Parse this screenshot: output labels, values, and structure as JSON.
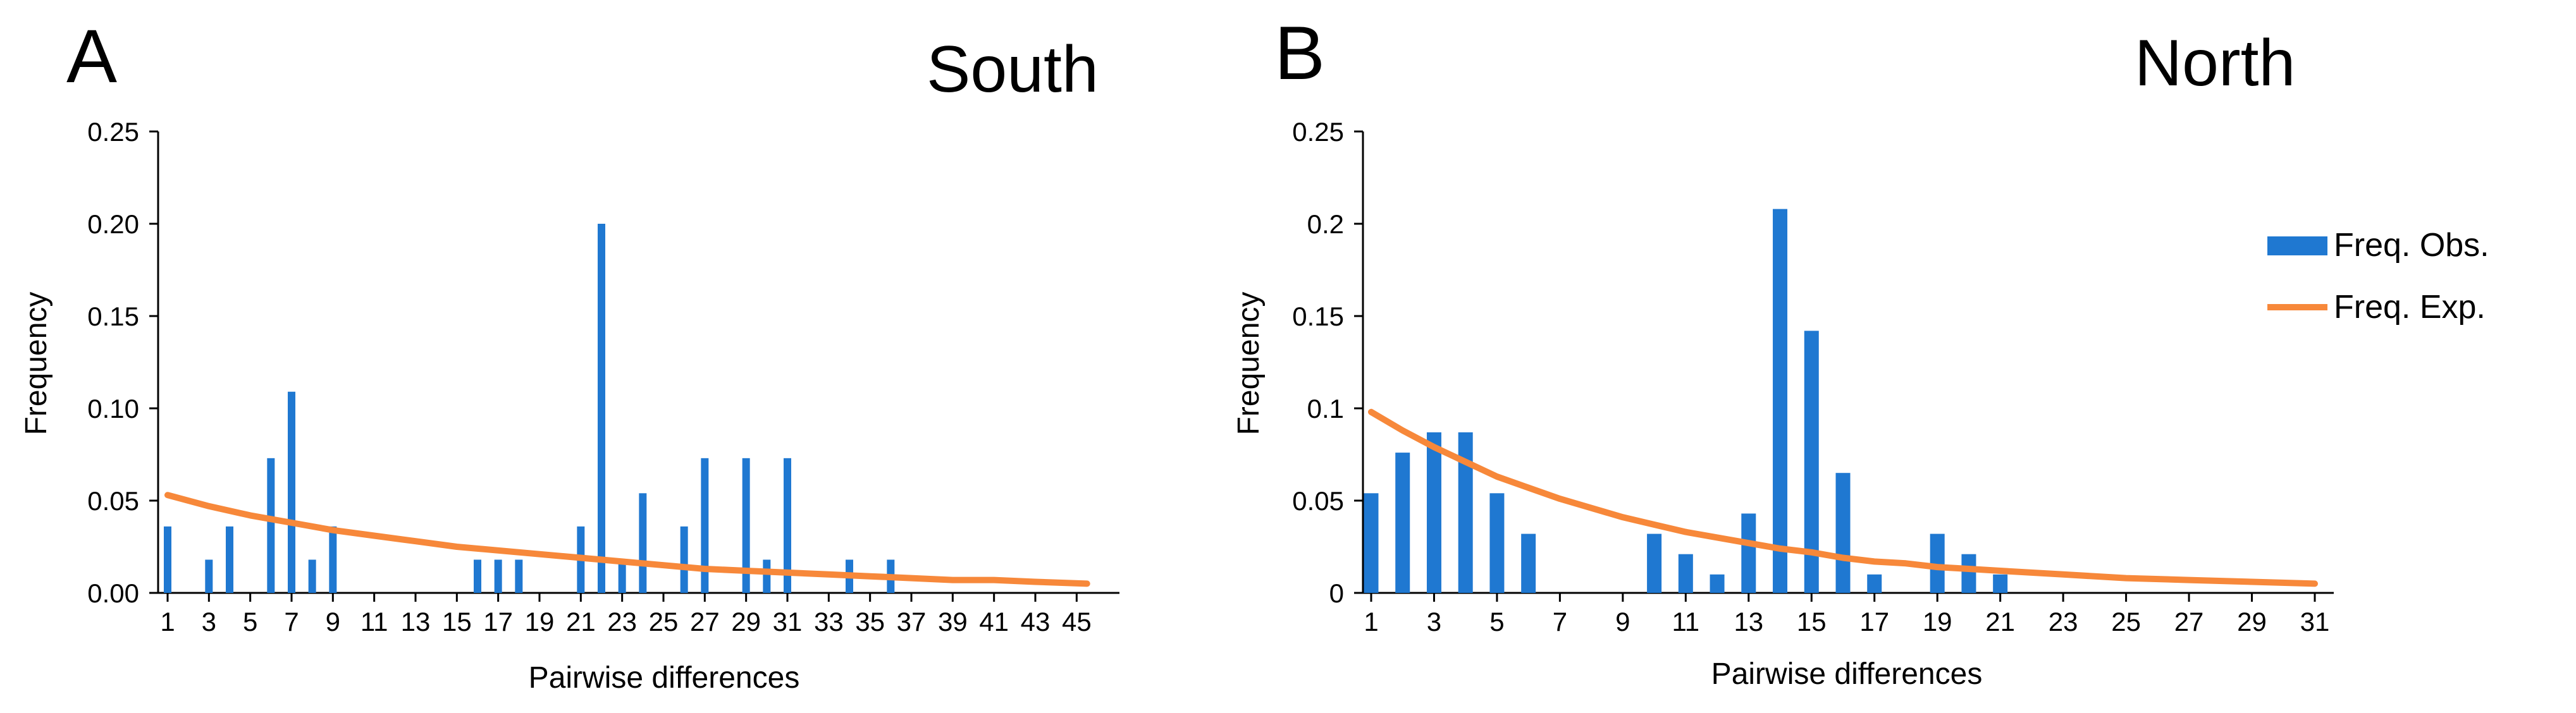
{
  "colors": {
    "observed": "#1f78d1",
    "expected": "#f7883a",
    "axis": "#000000"
  },
  "legend": {
    "observed_label": "Freq. Obs.",
    "expected_label": "Freq. Exp."
  },
  "chart_data": [
    {
      "type": "bar",
      "panel_letter": "A",
      "title": "South",
      "xlabel": "Pairwise differences",
      "ylabel": "Frequency",
      "xlim": [
        1,
        46
      ],
      "ylim": [
        0,
        0.25
      ],
      "x_ticks": [
        1,
        3,
        5,
        7,
        9,
        11,
        13,
        15,
        17,
        19,
        21,
        23,
        25,
        27,
        29,
        31,
        33,
        35,
        37,
        39,
        41,
        43,
        45
      ],
      "y_ticks": [
        0,
        0.05,
        0.1,
        0.15,
        0.2,
        0.25
      ],
      "y_tick_labels": [
        "0.00",
        "0.05",
        "0.10",
        "0.15",
        "0.20",
        "0.25"
      ],
      "series": [
        {
          "name": "Freq. Obs.",
          "kind": "bar",
          "points": [
            {
              "x": 1,
              "y": 0.036
            },
            {
              "x": 3,
              "y": 0.018
            },
            {
              "x": 4,
              "y": 0.036
            },
            {
              "x": 6,
              "y": 0.073
            },
            {
              "x": 7,
              "y": 0.109
            },
            {
              "x": 8,
              "y": 0.018
            },
            {
              "x": 9,
              "y": 0.036
            },
            {
              "x": 16,
              "y": 0.018
            },
            {
              "x": 17,
              "y": 0.018
            },
            {
              "x": 18,
              "y": 0.018
            },
            {
              "x": 21,
              "y": 0.036
            },
            {
              "x": 22,
              "y": 0.2
            },
            {
              "x": 23,
              "y": 0.018
            },
            {
              "x": 24,
              "y": 0.054
            },
            {
              "x": 26,
              "y": 0.036
            },
            {
              "x": 27,
              "y": 0.073
            },
            {
              "x": 29,
              "y": 0.073
            },
            {
              "x": 30,
              "y": 0.018
            },
            {
              "x": 31,
              "y": 0.073
            },
            {
              "x": 34,
              "y": 0.018
            },
            {
              "x": 36,
              "y": 0.018
            }
          ]
        },
        {
          "name": "Freq. Exp.",
          "kind": "line",
          "points": [
            {
              "x": 1,
              "y": 0.053
            },
            {
              "x": 3,
              "y": 0.047
            },
            {
              "x": 5,
              "y": 0.042
            },
            {
              "x": 7,
              "y": 0.038
            },
            {
              "x": 9,
              "y": 0.034
            },
            {
              "x": 11,
              "y": 0.031
            },
            {
              "x": 13,
              "y": 0.028
            },
            {
              "x": 15,
              "y": 0.025
            },
            {
              "x": 17,
              "y": 0.023
            },
            {
              "x": 19,
              "y": 0.021
            },
            {
              "x": 21,
              "y": 0.019
            },
            {
              "x": 23,
              "y": 0.017
            },
            {
              "x": 25,
              "y": 0.015
            },
            {
              "x": 27,
              "y": 0.013
            },
            {
              "x": 29,
              "y": 0.012
            },
            {
              "x": 31,
              "y": 0.011
            },
            {
              "x": 33,
              "y": 0.01
            },
            {
              "x": 35,
              "y": 0.009
            },
            {
              "x": 37,
              "y": 0.008
            },
            {
              "x": 39,
              "y": 0.007
            },
            {
              "x": 41,
              "y": 0.007
            },
            {
              "x": 43,
              "y": 0.006
            },
            {
              "x": 45.5,
              "y": 0.005
            }
          ]
        }
      ]
    },
    {
      "type": "bar",
      "panel_letter": "B",
      "title": "North",
      "xlabel": "Pairwise differences",
      "ylabel": "Frequency",
      "xlim": [
        1,
        31
      ],
      "ylim": [
        0,
        0.25
      ],
      "x_ticks": [
        1,
        3,
        5,
        7,
        9,
        11,
        13,
        15,
        17,
        19,
        21,
        23,
        25,
        27,
        29,
        31
      ],
      "y_ticks": [
        0,
        0.05,
        0.1,
        0.15,
        0.2,
        0.25
      ],
      "y_tick_labels": [
        "0",
        "0.05",
        "0.1",
        "0.15",
        "0.2",
        "0.25"
      ],
      "series": [
        {
          "name": "Freq. Obs.",
          "kind": "bar",
          "points": [
            {
              "x": 1,
              "y": 0.054
            },
            {
              "x": 2,
              "y": 0.076
            },
            {
              "x": 3,
              "y": 0.087
            },
            {
              "x": 4,
              "y": 0.087
            },
            {
              "x": 5,
              "y": 0.054
            },
            {
              "x": 6,
              "y": 0.032
            },
            {
              "x": 10,
              "y": 0.032
            },
            {
              "x": 11,
              "y": 0.021
            },
            {
              "x": 12,
              "y": 0.01
            },
            {
              "x": 13,
              "y": 0.043
            },
            {
              "x": 14,
              "y": 0.208
            },
            {
              "x": 15,
              "y": 0.142
            },
            {
              "x": 16,
              "y": 0.065
            },
            {
              "x": 17,
              "y": 0.01
            },
            {
              "x": 19,
              "y": 0.032
            },
            {
              "x": 20,
              "y": 0.021
            },
            {
              "x": 21,
              "y": 0.01
            }
          ]
        },
        {
          "name": "Freq. Exp.",
          "kind": "line",
          "points": [
            {
              "x": 1,
              "y": 0.098
            },
            {
              "x": 2,
              "y": 0.088
            },
            {
              "x": 3,
              "y": 0.079
            },
            {
              "x": 4,
              "y": 0.071
            },
            {
              "x": 5,
              "y": 0.063
            },
            {
              "x": 6,
              "y": 0.057
            },
            {
              "x": 7,
              "y": 0.051
            },
            {
              "x": 8,
              "y": 0.046
            },
            {
              "x": 9,
              "y": 0.041
            },
            {
              "x": 10,
              "y": 0.037
            },
            {
              "x": 11,
              "y": 0.033
            },
            {
              "x": 12,
              "y": 0.03
            },
            {
              "x": 13,
              "y": 0.027
            },
            {
              "x": 14,
              "y": 0.024
            },
            {
              "x": 15,
              "y": 0.022
            },
            {
              "x": 16,
              "y": 0.019
            },
            {
              "x": 17,
              "y": 0.017
            },
            {
              "x": 18,
              "y": 0.016
            },
            {
              "x": 19,
              "y": 0.014
            },
            {
              "x": 20,
              "y": 0.013
            },
            {
              "x": 21,
              "y": 0.012
            },
            {
              "x": 23,
              "y": 0.01
            },
            {
              "x": 25,
              "y": 0.008
            },
            {
              "x": 27,
              "y": 0.007
            },
            {
              "x": 29,
              "y": 0.006
            },
            {
              "x": 31,
              "y": 0.005
            }
          ]
        }
      ]
    }
  ]
}
